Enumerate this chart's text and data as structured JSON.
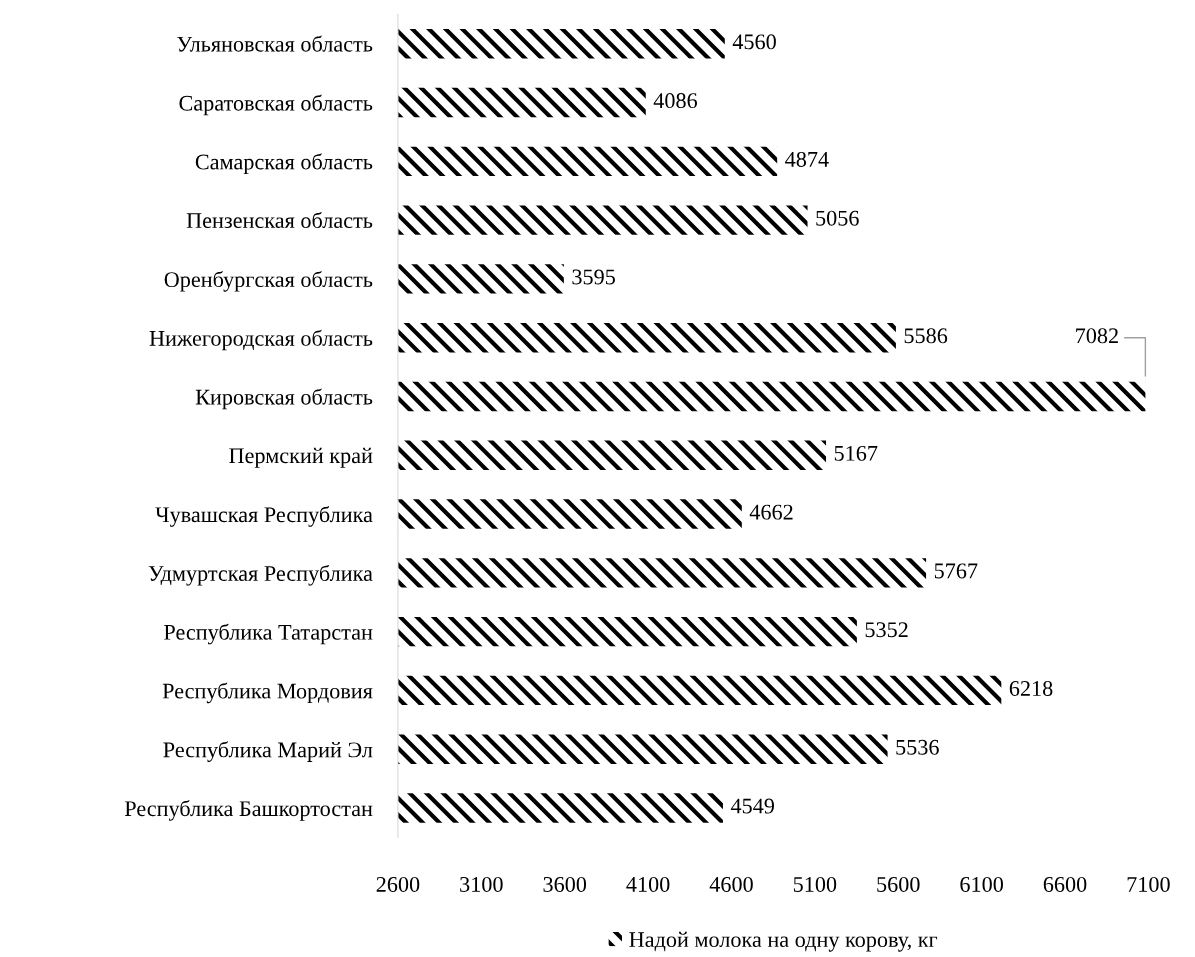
{
  "chart_data": {
    "type": "bar",
    "orientation": "horizontal",
    "categories": [
      "Ульяновская область",
      "Саратовская область",
      "Самарская область",
      "Пензенская область",
      "Оренбургская область",
      "Нижегородская область",
      "Кировская область",
      "Пермский край",
      "Чувашская Республика",
      "Удмуртская Республика",
      "Республика Татарстан",
      "Республика Мордовия",
      "Республика Марий Эл",
      "Республика Башкортостан"
    ],
    "series": [
      {
        "name": "Надой молока на одну корову, кг",
        "color": "#000000",
        "values": [
          4560,
          4086,
          4874,
          5056,
          3595,
          5586,
          7082,
          5167,
          4662,
          5767,
          5352,
          6218,
          5536,
          4549
        ]
      }
    ],
    "xlim": [
      2600,
      7100
    ],
    "xticks": [
      2600,
      3100,
      3600,
      4100,
      4600,
      5100,
      5600,
      6100,
      6600,
      7100
    ],
    "data_labels": true,
    "grid": false,
    "legend": "bottom"
  }
}
